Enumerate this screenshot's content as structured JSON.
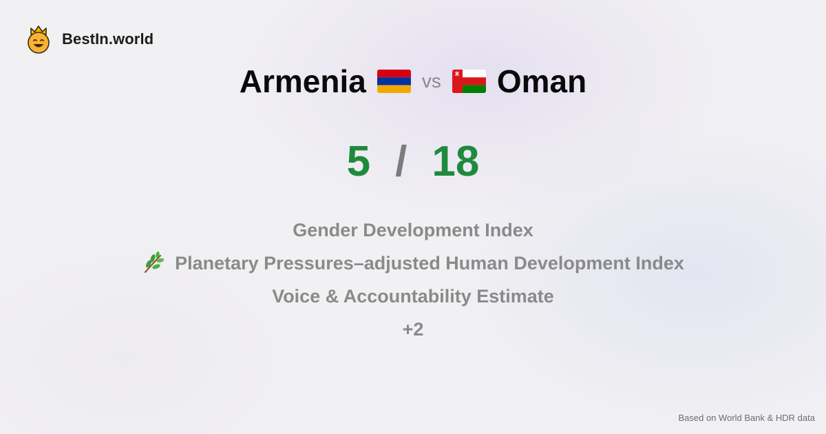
{
  "brand": {
    "name": "BestIn.world",
    "logo_icon": "crowned-smiley-icon"
  },
  "comparison": {
    "left": {
      "name": "Armenia",
      "flag_icon": "armenia-flag-icon",
      "flag_colors": [
        "#d90012",
        "#0033a0",
        "#f2a800"
      ]
    },
    "vs_label": "vs",
    "right": {
      "name": "Oman",
      "flag_icon": "oman-flag-icon",
      "flag_colors": [
        "#db161b",
        "#ffffff",
        "#008000"
      ]
    }
  },
  "score": {
    "left": "5",
    "separator": "/",
    "right": "18"
  },
  "indicators": [
    {
      "label": "Gender Development Index",
      "icon": ""
    },
    {
      "label": "Planetary Pressures–adjusted Human Development Index",
      "icon": "leaf-branch-icon"
    },
    {
      "label": "Voice & Accountability Estimate",
      "icon": ""
    },
    {
      "label": "+2",
      "icon": ""
    }
  ],
  "source": "Based on World Bank & HDR data",
  "colors": {
    "score": "#1f8a3d",
    "muted": "#8a8a8a",
    "title": "#0a0a0a"
  }
}
